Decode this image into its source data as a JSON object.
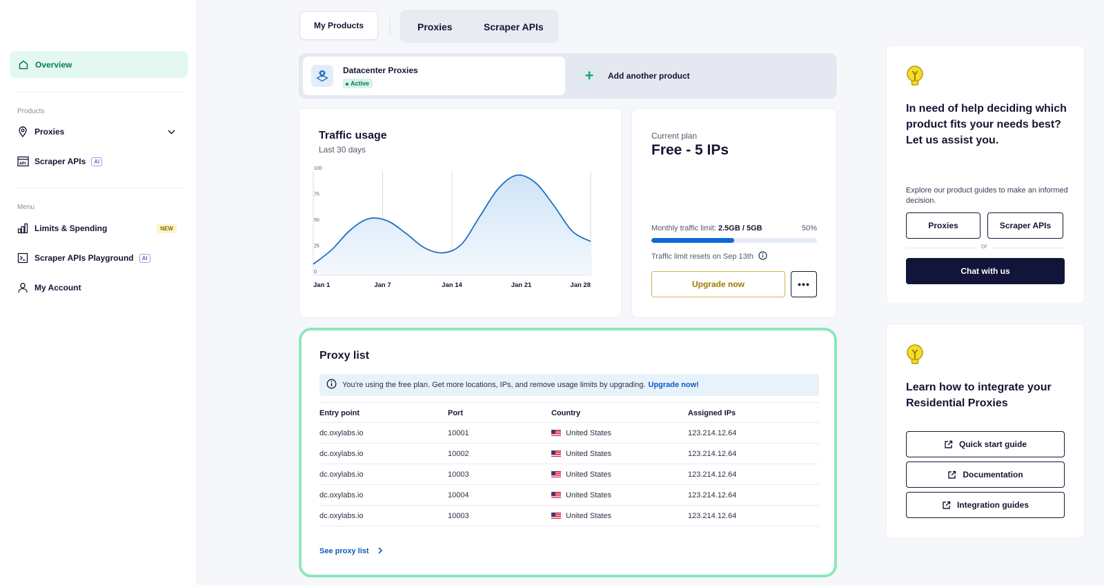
{
  "sidebar": {
    "overview": "Overview",
    "products_section": "Products",
    "proxies": "Proxies",
    "scraper_apis": "Scraper APIs",
    "ai_badge": "AI",
    "menu_section": "Menu",
    "limits": "Limits & Spending",
    "new_badge": "NEW",
    "playground": "Scraper APIs Playground",
    "account": "My Account"
  },
  "tabs": {
    "my_products": "My Products",
    "proxies": "Proxies",
    "scraper_apis": "Scraper APIs"
  },
  "products": {
    "current_name": "Datacenter Proxies",
    "current_status": "Active",
    "add_label": "Add another product"
  },
  "traffic": {
    "title": "Traffic usage",
    "subtitle": "Last 30 days"
  },
  "chart_data": {
    "type": "area",
    "title": "Traffic usage",
    "x_ticks": [
      "Jan 1",
      "Jan 7",
      "Jan 14",
      "Jan 21",
      "Jan 28"
    ],
    "y_ticks": [
      "0",
      "25",
      "50",
      "75",
      "100"
    ],
    "ylim": [
      0,
      100
    ],
    "x": [
      0,
      2,
      4,
      6,
      8,
      10,
      12,
      14,
      16,
      18,
      20,
      22,
      24,
      26,
      28,
      30
    ],
    "values": [
      10,
      24,
      43,
      54,
      52,
      40,
      26,
      21,
      29,
      56,
      83,
      96,
      89,
      67,
      42,
      32
    ],
    "grid": "vertical",
    "color": "#1f6fbf"
  },
  "plan": {
    "label": "Current plan",
    "name": "Free - 5 IPs",
    "limit_label": "Monthly traffic limit:",
    "limit_value": "2.5GB / 5GB",
    "limit_percent_text": "50%",
    "limit_fraction": 0.5,
    "reset_text": "Traffic limit resets on Sep 13th",
    "upgrade": "Upgrade now",
    "more": "•••"
  },
  "proxy_list": {
    "title": "Proxy list",
    "notice": "You're using the free plan. Get more locations, IPs, and remove usage limits by upgrading.",
    "notice_link": "Upgrade now!",
    "columns": [
      "Entry point",
      "Port",
      "Country",
      "Assigned IPs"
    ],
    "rows": [
      [
        "dc.oxylabs.io",
        "10001",
        "United States",
        "123.214.12.64"
      ],
      [
        "dc.oxylabs.io",
        "10002",
        "United States",
        "123.214.12.64"
      ],
      [
        "dc.oxylabs.io",
        "10003",
        "United States",
        "123.214.12.64"
      ],
      [
        "dc.oxylabs.io",
        "10004",
        "United States",
        "123.214.12.64"
      ],
      [
        "dc.oxylabs.io",
        "10003",
        "United States",
        "123.214.12.64"
      ]
    ],
    "see_more": "See proxy list"
  },
  "help": {
    "title": "In need of help deciding which product fits your needs best? Let us assist you.",
    "desc": "Explore our product guides to make an informed decision.",
    "btn_proxies": "Proxies",
    "btn_scraper": "Scraper APIs",
    "or": "or",
    "chat": "Chat with us"
  },
  "learn": {
    "title": "Learn how to integrate your Residential Proxies",
    "quick_start": "Quick start guide",
    "documentation": "Documentation",
    "integration": "Integration guides"
  }
}
